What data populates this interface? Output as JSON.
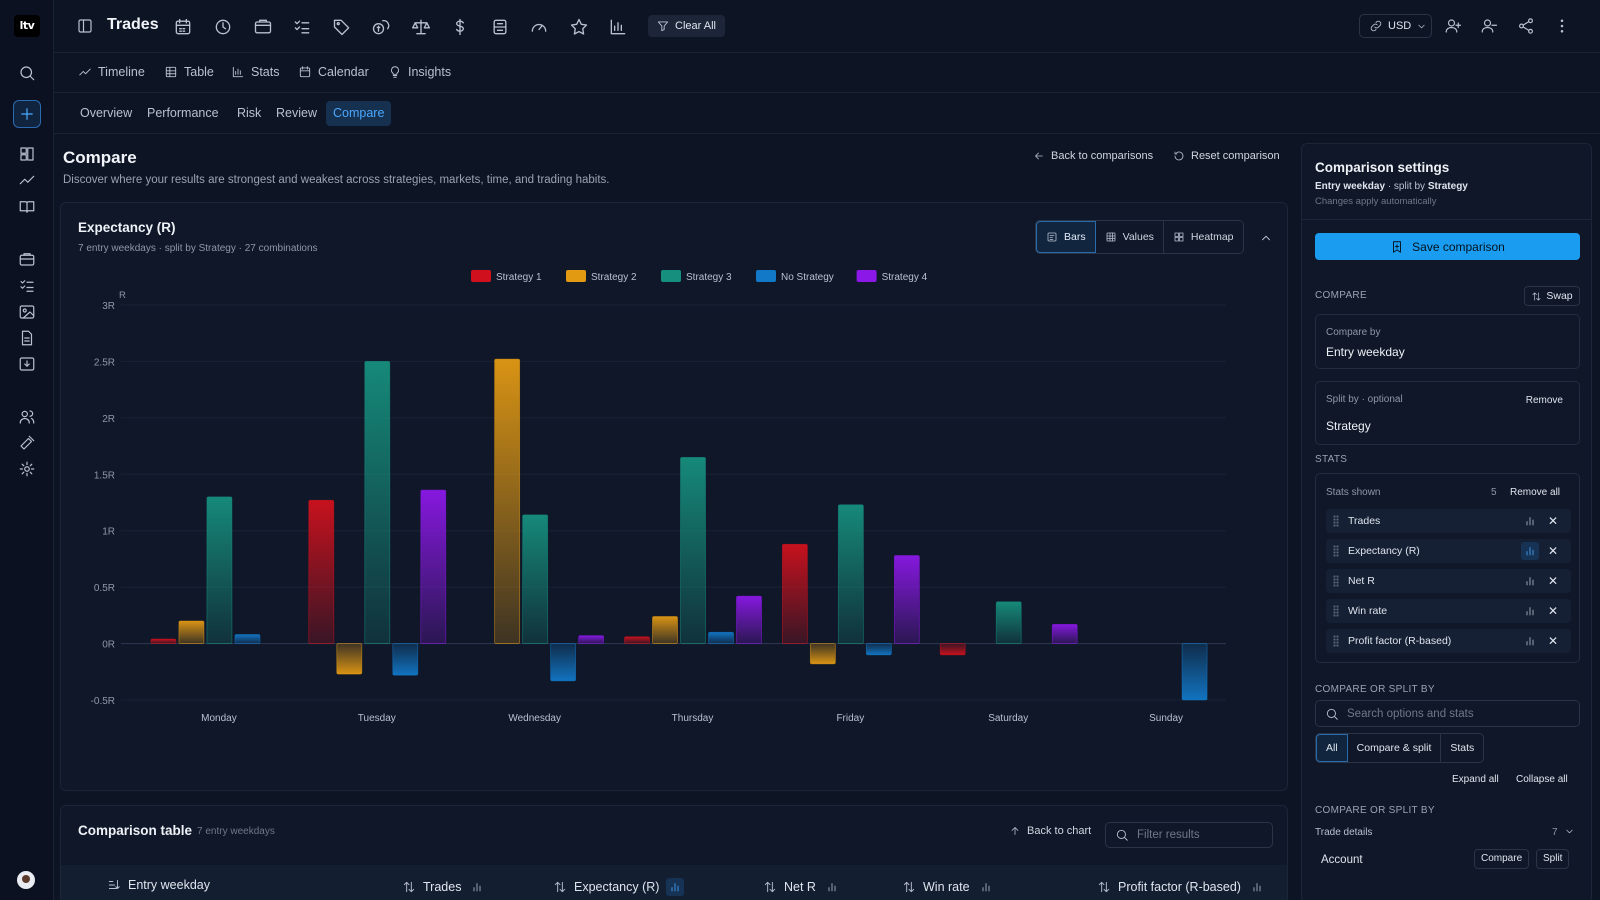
{
  "app": {
    "logo": "ltv",
    "title": "Trades",
    "clear_all": "Clear All",
    "currency": "USD"
  },
  "nav": {
    "items": [
      {
        "label": "Timeline",
        "icon": "timeline-icon"
      },
      {
        "label": "Table",
        "icon": "table-icon"
      },
      {
        "label": "Stats",
        "icon": "stats-icon"
      },
      {
        "label": "Calendar",
        "icon": "calendar-icon"
      },
      {
        "label": "Insights",
        "icon": "lightbulb-icon"
      }
    ]
  },
  "tabs": [
    "Overview",
    "Performance",
    "Risk",
    "Review",
    "Compare"
  ],
  "page": {
    "title": "Compare",
    "description": "Discover where your results are strongest and weakest across strategies, markets, time, and trading habits.",
    "back_to_comparisons": "Back to comparisons",
    "reset_comparison": "Reset comparison"
  },
  "chart_card": {
    "title": "Expectancy (R)",
    "subtitle": "7 entry weekdays · split by Strategy · 27 combinations",
    "views": [
      "Bars",
      "Values",
      "Heatmap"
    ]
  },
  "chart_data": {
    "type": "bar",
    "ylabel": "R",
    "ylim": [
      -0.5,
      3
    ],
    "yticks": [
      -0.5,
      0,
      0.5,
      1,
      1.5,
      2,
      2.5,
      3
    ],
    "ytick_labels": [
      "-0.5R",
      "0R",
      "0.5R",
      "1R",
      "1.5R",
      "2R",
      "2.5R",
      "3R"
    ],
    "categories": [
      "Monday",
      "Tuesday",
      "Wednesday",
      "Thursday",
      "Friday",
      "Saturday",
      "Sunday"
    ],
    "legend_position": "top-center",
    "series": [
      {
        "name": "Strategy 1",
        "color": "#d0111d",
        "values": [
          0.04,
          1.27,
          null,
          0.06,
          0.88,
          -0.1,
          null
        ]
      },
      {
        "name": "Strategy 2",
        "color": "#e39a13",
        "values": [
          0.2,
          -0.27,
          2.52,
          0.24,
          -0.18,
          null,
          null
        ]
      },
      {
        "name": "Strategy 3",
        "color": "#168f7e",
        "values": [
          1.3,
          2.5,
          1.14,
          1.65,
          1.23,
          0.37,
          null
        ]
      },
      {
        "name": "No Strategy",
        "color": "#1278c8",
        "values": [
          0.08,
          -0.28,
          -0.33,
          0.1,
          -0.1,
          null,
          -0.5
        ]
      },
      {
        "name": "Strategy 4",
        "color": "#8c18e8",
        "values": [
          null,
          1.36,
          0.07,
          0.42,
          0.78,
          0.17,
          null
        ]
      }
    ]
  },
  "table": {
    "title": "Comparison table",
    "count": "7 entry weekdays",
    "back_to_chart": "Back to chart",
    "filter_placeholder": "Filter results",
    "columns": [
      "Entry weekday",
      "Trades",
      "Expectancy (R)",
      "Net R",
      "Win rate",
      "Profit factor (R-based)"
    ]
  },
  "settings": {
    "title": "Comparison settings",
    "subtitle_prefix": "Entry weekday",
    "subtitle_mid": " · split by ",
    "subtitle_suffix": "Strategy",
    "note": "Changes apply automatically",
    "save": "Save comparison",
    "compare_section": "COMPARE",
    "swap": "Swap",
    "compare_by_label": "Compare by",
    "compare_by_value": "Entry weekday",
    "split_by_label": "Split by · optional",
    "split_by_value": "Strategy",
    "remove": "Remove",
    "stats_section": "STATS",
    "stats_shown": "Stats shown",
    "stats_count": "5",
    "remove_all": "Remove all",
    "stats": [
      "Trades",
      "Expectancy (R)",
      "Net R",
      "Win rate",
      "Profit factor (R-based)"
    ],
    "compare_or_split": "COMPARE OR SPLIT BY",
    "search_placeholder": "Search options and stats",
    "filters": [
      "All",
      "Compare & split",
      "Stats"
    ],
    "expand_all": "Expand all",
    "collapse_all": "Collapse all",
    "trade_details": "Trade details",
    "trade_details_count": "7",
    "account": "Account",
    "compare_btn": "Compare",
    "split_btn": "Split"
  }
}
